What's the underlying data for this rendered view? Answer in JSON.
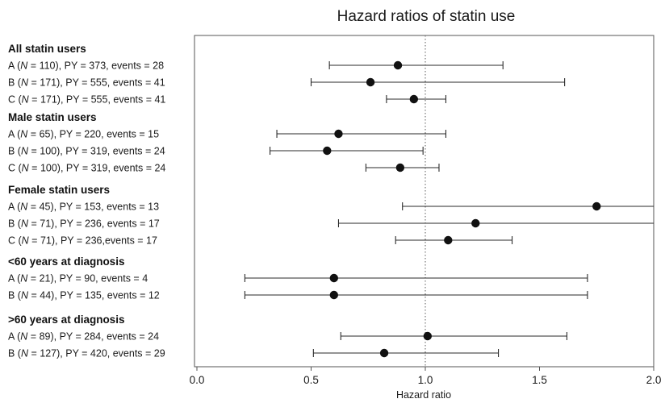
{
  "chart_data": {
    "type": "forest",
    "title": "Hazard ratios of statin use",
    "xlabel": "Hazard ratio",
    "xlim": [
      0.0,
      2.0
    ],
    "xticks": [
      "0.0",
      "0.5",
      "1.0",
      "1.5",
      "2.0"
    ],
    "reference_line": 1.0,
    "grid": false,
    "groups": [
      {
        "label": "All statin users",
        "rows": [
          {
            "prefix": "A (",
            "n_symbol": "N",
            "suffix": " = 110), PY = 373, events = 28",
            "hr": 0.88,
            "lo": 0.58,
            "hi": 1.34
          },
          {
            "prefix": "B (",
            "n_symbol": "N",
            "suffix": " = 171), PY = 555, events = 41",
            "hr": 0.76,
            "lo": 0.5,
            "hi": 1.61
          },
          {
            "prefix": "C (",
            "n_symbol": "N",
            "suffix": " = 171), PY = 555, events = 41",
            "hr": 0.95,
            "lo": 0.83,
            "hi": 1.09
          }
        ]
      },
      {
        "label": "Male statin users",
        "rows": [
          {
            "prefix": "A (",
            "n_symbol": "N",
            "suffix": " = 65), PY = 220, events = 15",
            "hr": 0.62,
            "lo": 0.35,
            "hi": 1.09
          },
          {
            "prefix": "B (",
            "n_symbol": "N",
            "suffix": " = 100), PY = 319, events = 24",
            "hr": 0.57,
            "lo": 0.32,
            "hi": 0.99
          },
          {
            "prefix": "C (",
            "n_symbol": "N",
            "suffix": " = 100), PY = 319, events = 24",
            "hr": 0.89,
            "lo": 0.74,
            "hi": 1.06
          }
        ]
      },
      {
        "label": "Female statin users",
        "rows": [
          {
            "prefix": "A (",
            "n_symbol": "N",
            "suffix": " = 45), PY = 153, events = 13",
            "hr": 1.75,
            "lo": 0.9,
            "hi": 2.0
          },
          {
            "prefix": "B (",
            "n_symbol": "N",
            "suffix": " = 71), PY = 236, events = 17",
            "hr": 1.22,
            "lo": 0.62,
            "hi": 2.0
          },
          {
            "prefix": "C (",
            "n_symbol": "N",
            "suffix": " = 71), PY = 236,events = 17",
            "hr": 1.1,
            "lo": 0.87,
            "hi": 1.38
          }
        ]
      },
      {
        "label": "<60 years at diagnosis",
        "rows": [
          {
            "prefix": "A (",
            "n_symbol": "N",
            "suffix": " = 21), PY = 90, events = 4",
            "hr": 0.6,
            "lo": 0.21,
            "hi": 1.71
          },
          {
            "prefix": "B (",
            "n_symbol": "N",
            "suffix": " = 44), PY = 135, events = 12",
            "hr": 0.6,
            "lo": 0.21,
            "hi": 1.71
          }
        ]
      },
      {
        "label": ">60 years at diagnosis",
        "rows": [
          {
            "prefix": "A (",
            "n_symbol": "N",
            "suffix": " = 89), PY = 284, events = 24",
            "hr": 1.01,
            "lo": 0.63,
            "hi": 1.62
          },
          {
            "prefix": "B (",
            "n_symbol": "N",
            "suffix": " = 127), PY = 420, events = 29",
            "hr": 0.82,
            "lo": 0.51,
            "hi": 1.32
          }
        ]
      }
    ]
  }
}
